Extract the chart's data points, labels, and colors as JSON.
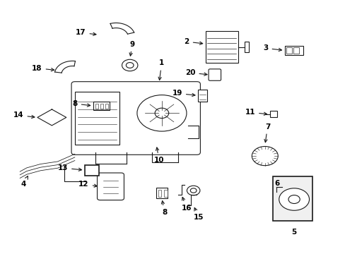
{
  "bg_color": "#ffffff",
  "fig_width": 4.89,
  "fig_height": 3.6,
  "dpi": 100,
  "line_color": "#1a1a1a",
  "label_fontsize": 7.5,
  "label_color": "#000000"
}
